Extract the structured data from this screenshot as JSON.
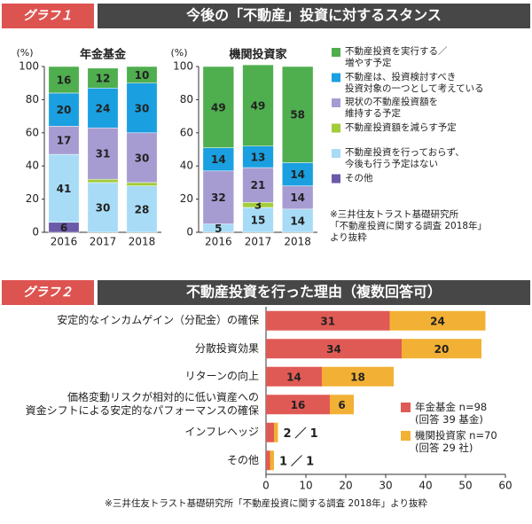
{
  "headers": [
    {
      "badge": "グラフ１",
      "title": "今後の「不動産」投資に対するスタンス"
    },
    {
      "badge": "グラフ２",
      "title": "不動産投資を行った理由（複数回答可）"
    }
  ],
  "notes": [
    "※三井住友トラスト基礎研究所\n「不動産投資に関する調査 2018年」\nより抜粋",
    "※三井住友トラスト基礎研究所「不動産投資に関する調査 2018年」より抜粋"
  ],
  "chart_data": [
    {
      "type": "stacked_bar",
      "subtitle": "年金基金",
      "y_label": "(%)",
      "categories": [
        "2016",
        "2017",
        "2018"
      ],
      "ylim": [
        0,
        100
      ],
      "yticks": [
        0,
        20,
        40,
        60,
        80,
        100
      ],
      "series": [
        {
          "name": "不動産投資を実行する／\n増やす予定",
          "color": "#4fae4e",
          "values": [
            16,
            12,
            10
          ]
        },
        {
          "name": "不動産は、投資検討すべき\n投資対象の一つとして考えている",
          "color": "#1a9fe0",
          "values": [
            20,
            24,
            30
          ]
        },
        {
          "name": "現状の不動産投資額を\n維持する予定",
          "color": "#a79cd2",
          "values": [
            17,
            31,
            30
          ]
        },
        {
          "name": "不動産投資額を減らす予定",
          "color": "#a3cc3a",
          "values": [
            0,
            2,
            2
          ]
        },
        {
          "name": "不動産投資を行っておらず、\n今後も行う予定はない",
          "color": "#a8dcf6",
          "values": [
            41,
            30,
            28
          ]
        },
        {
          "name": "その他",
          "color": "#6a5aa8",
          "values": [
            6,
            0,
            0
          ]
        }
      ]
    },
    {
      "type": "stacked_bar",
      "subtitle": "機関投資家",
      "y_label": "(%)",
      "categories": [
        "2016",
        "2017",
        "2018"
      ],
      "ylim": [
        0,
        100
      ],
      "yticks": [
        0,
        20,
        40,
        60,
        80,
        100
      ],
      "series": [
        {
          "color": "#4fae4e",
          "values": [
            49,
            49,
            58
          ]
        },
        {
          "color": "#1a9fe0",
          "values": [
            14,
            13,
            14
          ]
        },
        {
          "color": "#a79cd2",
          "values": [
            32,
            21,
            14
          ]
        },
        {
          "color": "#a3cc3a",
          "values": [
            0,
            3,
            0
          ]
        },
        {
          "color": "#a8dcf6",
          "values": [
            5,
            15,
            14
          ]
        },
        {
          "color": "#6a5aa8",
          "values": [
            0,
            0,
            0
          ]
        }
      ]
    },
    {
      "type": "stacked_hbar",
      "categories": [
        "安定的なインカムゲイン（分配金）の確保",
        "分散投資効果",
        "リターンの向上",
        "価格変動リスクが相対的に低い資産への\n資金シフトによる安定的なパフォーマンスの確保",
        "インフレヘッジ",
        "その他"
      ],
      "xlim": [
        0,
        60
      ],
      "xticks": [
        0,
        10,
        20,
        30,
        40,
        50,
        60
      ],
      "label_separator": "／",
      "series": [
        {
          "name": "年金基金 n=98\n(回答 39 基金)",
          "color": "#e05a55",
          "values": [
            31,
            34,
            14,
            16,
            2,
            1
          ]
        },
        {
          "name": "機関投資家 n=70\n(回答 29 社)",
          "color": "#f2b134",
          "values": [
            24,
            20,
            18,
            6,
            1,
            1
          ]
        }
      ]
    }
  ]
}
